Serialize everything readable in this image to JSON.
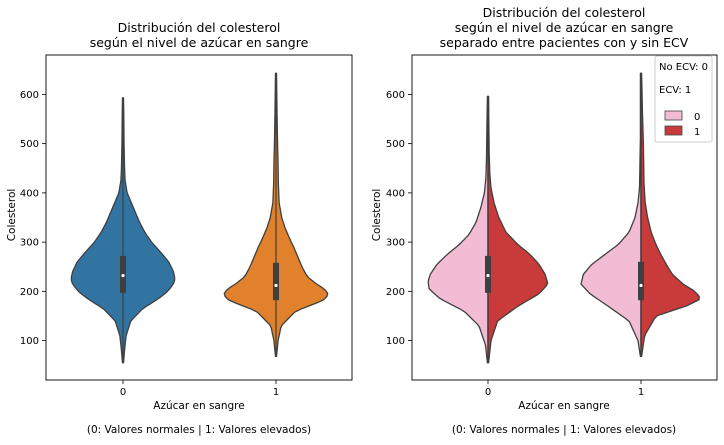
{
  "chart_data": [
    {
      "type": "violin",
      "title_lines": [
        "Distribución del colesterol",
        "según el nivel de azúcar en sangre"
      ],
      "xlabel": "Azúcar en sangre",
      "xnote": "(0: Valores normales | 1: Valores elevados)",
      "ylabel": "Colesterol",
      "categories": [
        "0",
        "1"
      ],
      "yticks": [
        100,
        200,
        300,
        400,
        500,
        600
      ],
      "ylim": [
        20,
        680
      ],
      "grid": false,
      "split": false,
      "violins": [
        {
          "category": "0",
          "color": "#3274a1",
          "y_min": 55,
          "y_max": 593,
          "quartiles": [
            197,
            232,
            272
          ],
          "profile": [
            [
              55,
              0.01
            ],
            [
              80,
              0.03
            ],
            [
              110,
              0.06
            ],
            [
              140,
              0.15
            ],
            [
              165,
              0.38
            ],
            [
              185,
              0.68
            ],
            [
              200,
              0.86
            ],
            [
              215,
              0.97
            ],
            [
              225,
              1.0
            ],
            [
              240,
              0.97
            ],
            [
              260,
              0.88
            ],
            [
              280,
              0.72
            ],
            [
              300,
              0.55
            ],
            [
              320,
              0.42
            ],
            [
              340,
              0.32
            ],
            [
              360,
              0.24
            ],
            [
              380,
              0.16
            ],
            [
              400,
              0.08
            ],
            [
              425,
              0.04
            ],
            [
              450,
              0.03
            ],
            [
              500,
              0.02
            ],
            [
              560,
              0.015
            ],
            [
              593,
              0.01
            ]
          ]
        },
        {
          "category": "1",
          "color": "#e1812c",
          "y_min": 68,
          "y_max": 643,
          "quartiles": [
            182,
            212,
            258
          ],
          "profile": [
            [
              68,
              0.01
            ],
            [
              100,
              0.04
            ],
            [
              130,
              0.1
            ],
            [
              160,
              0.38
            ],
            [
              175,
              0.75
            ],
            [
              185,
              0.96
            ],
            [
              195,
              1.0
            ],
            [
              205,
              0.93
            ],
            [
              215,
              0.78
            ],
            [
              230,
              0.6
            ],
            [
              250,
              0.5
            ],
            [
              270,
              0.42
            ],
            [
              290,
              0.34
            ],
            [
              310,
              0.25
            ],
            [
              330,
              0.17
            ],
            [
              350,
              0.11
            ],
            [
              380,
              0.06
            ],
            [
              420,
              0.045
            ],
            [
              460,
              0.04
            ],
            [
              500,
              0.03
            ],
            [
              560,
              0.02
            ],
            [
              643,
              0.01
            ]
          ]
        }
      ]
    },
    {
      "type": "violin",
      "title_lines": [
        "Distribución del colesterol",
        "según el nivel de azúcar en sangre",
        "separado entre pacientes con y sin ECV"
      ],
      "xlabel": "Azúcar en sangre",
      "xnote": "(0: Valores normales | 1: Valores elevados)",
      "ylabel": "Colesterol",
      "categories": [
        "0",
        "1"
      ],
      "yticks": [
        100,
        200,
        300,
        400,
        500,
        600
      ],
      "ylim": [
        20,
        680
      ],
      "grid": false,
      "split": true,
      "legend": {
        "placement": "top-right",
        "notes": [
          "No ECV: 0",
          "ECV: 1"
        ],
        "entries": [
          {
            "label": "0",
            "color": "#f2bcd4"
          },
          {
            "label": "1",
            "color": "#c93a3a"
          }
        ]
      },
      "violins": [
        {
          "category": "0",
          "y_min": 55,
          "y_max": 596,
          "quartiles": [
            197,
            232,
            272
          ],
          "left": {
            "hue": "0",
            "color": "#f2bcd4",
            "profile": [
              [
                55,
                0.01
              ],
              [
                90,
                0.04
              ],
              [
                130,
                0.15
              ],
              [
                160,
                0.4
              ],
              [
                185,
                0.8
              ],
              [
                205,
                0.98
              ],
              [
                220,
                1.0
              ],
              [
                235,
                0.96
              ],
              [
                255,
                0.85
              ],
              [
                275,
                0.68
              ],
              [
                295,
                0.48
              ],
              [
                315,
                0.32
              ],
              [
                340,
                0.2
              ],
              [
                370,
                0.12
              ],
              [
                400,
                0.06
              ],
              [
                430,
                0.035
              ],
              [
                470,
                0.025
              ],
              [
                520,
                0.02
              ],
              [
                596,
                0.01
              ]
            ]
          },
          "right": {
            "hue": "1",
            "color": "#c93a3a",
            "profile": [
              [
                55,
                0.01
              ],
              [
                100,
                0.05
              ],
              [
                140,
                0.16
              ],
              [
                170,
                0.5
              ],
              [
                195,
                0.85
              ],
              [
                215,
                1.0
              ],
              [
                235,
                0.95
              ],
              [
                255,
                0.85
              ],
              [
                275,
                0.7
              ],
              [
                295,
                0.5
              ],
              [
                320,
                0.3
              ],
              [
                350,
                0.18
              ],
              [
                380,
                0.1
              ],
              [
                410,
                0.05
              ],
              [
                440,
                0.03
              ],
              [
                480,
                0.02
              ],
              [
                530,
                0.015
              ],
              [
                596,
                0.01
              ]
            ]
          }
        },
        {
          "category": "1",
          "y_min": 68,
          "y_max": 643,
          "quartiles": [
            182,
            212,
            260
          ],
          "left": {
            "hue": "0",
            "color": "#f2bcd4",
            "profile": [
              [
                68,
                0.01
              ],
              [
                100,
                0.05
              ],
              [
                140,
                0.2
              ],
              [
                170,
                0.55
              ],
              [
                195,
                0.85
              ],
              [
                215,
                1.0
              ],
              [
                235,
                0.96
              ],
              [
                255,
                0.82
              ],
              [
                275,
                0.6
              ],
              [
                295,
                0.38
              ],
              [
                320,
                0.2
              ],
              [
                350,
                0.1
              ],
              [
                380,
                0.05
              ],
              [
                410,
                0.025
              ],
              [
                440,
                0.02
              ],
              [
                480,
                0.015
              ],
              [
                510,
                0.01
              ]
            ]
          },
          "right": {
            "hue": "1",
            "color": "#c93a3a",
            "profile": [
              [
                68,
                0.01
              ],
              [
                110,
                0.06
              ],
              [
                150,
                0.25
              ],
              [
                170,
                0.75
              ],
              [
                185,
                1.0
              ],
              [
                200,
                0.9
              ],
              [
                215,
                0.7
              ],
              [
                235,
                0.52
              ],
              [
                255,
                0.42
              ],
              [
                275,
                0.33
              ],
              [
                295,
                0.25
              ],
              [
                320,
                0.17
              ],
              [
                350,
                0.11
              ],
              [
                380,
                0.07
              ],
              [
                420,
                0.05
              ],
              [
                460,
                0.045
              ],
              [
                500,
                0.04
              ],
              [
                560,
                0.025
              ],
              [
                643,
                0.01
              ]
            ]
          }
        }
      ]
    }
  ]
}
